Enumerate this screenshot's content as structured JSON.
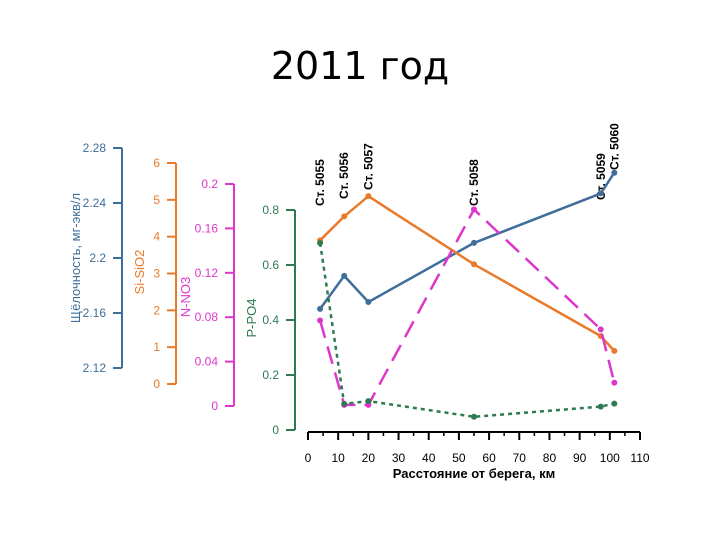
{
  "slide": {
    "title": "2011 год"
  },
  "chart_data": {
    "type": "line",
    "title": "2011 год",
    "x": {
      "label": "Расстояние от берега, км",
      "ticks": [
        "0",
        "10",
        "20",
        "30",
        "40",
        "50",
        "60",
        "70",
        "80",
        "90",
        "100",
        "110"
      ],
      "range": [
        0,
        110
      ]
    },
    "station_labels": [
      {
        "label": "Ст. 5055",
        "x": 4
      },
      {
        "label": "Ст. 5056",
        "x": 12
      },
      {
        "label": "Ст. 5057",
        "x": 20
      },
      {
        "label": "Ст. 5058",
        "x": 55
      },
      {
        "label": "Ст. 5059",
        "x": 97
      },
      {
        "label": "Ст. 5060",
        "x": 101.5
      }
    ],
    "axes": [
      {
        "id": "alk",
        "label": "Щёлочность, мг-экв/л",
        "color": "#3f6e9a",
        "range": [
          2.12,
          2.28
        ],
        "ticks": [
          "2.12",
          "2.16",
          "2.2",
          "2.24",
          "2.28"
        ]
      },
      {
        "id": "si",
        "label": "Si-SiO2",
        "color": "#ea7a2a",
        "range": [
          0,
          6
        ],
        "ticks": [
          "0",
          "1",
          "2",
          "3",
          "4",
          "5",
          "6"
        ]
      },
      {
        "id": "n",
        "label": "N-NO3",
        "color": "#dd36cc",
        "range": [
          0,
          0.2
        ],
        "ticks": [
          "0",
          "0.04",
          "0.08",
          "0.12",
          "0.16",
          "0.2"
        ]
      },
      {
        "id": "p",
        "label": "P-PO4",
        "color": "#2f7a51",
        "range": [
          0,
          0.8
        ],
        "ticks": [
          "0",
          "0.2",
          "0.4",
          "0.6",
          "0.8"
        ]
      }
    ],
    "series": [
      {
        "axis": "alk",
        "color": "#3f6e9a",
        "style": "solid",
        "points": [
          [
            4,
            2.163
          ],
          [
            12,
            2.187
          ],
          [
            20,
            2.168
          ],
          [
            55,
            2.211
          ],
          [
            97,
            2.247
          ],
          [
            101.5,
            2.262
          ]
        ]
      },
      {
        "axis": "si",
        "color": "#ea7a2a",
        "style": "solid",
        "points": [
          [
            4,
            3.9
          ],
          [
            12,
            4.55
          ],
          [
            20,
            5.1
          ],
          [
            55,
            3.25
          ],
          [
            97,
            1.3
          ],
          [
            101.5,
            0.9
          ]
        ]
      },
      {
        "axis": "n",
        "color": "#dd36cc",
        "style": "dashed",
        "points": [
          [
            4,
            0.077
          ],
          [
            12,
            0.001
          ],
          [
            20,
            0.001
          ],
          [
            55,
            0.177
          ],
          [
            97,
            0.069
          ],
          [
            101.5,
            0.021
          ]
        ]
      },
      {
        "axis": "p",
        "color": "#2f7a51",
        "style": "dotted",
        "points": [
          [
            4,
            0.68
          ],
          [
            12,
            0.095
          ],
          [
            20,
            0.105
          ],
          [
            55,
            0.048
          ],
          [
            97,
            0.085
          ],
          [
            101.5,
            0.096
          ]
        ]
      }
    ]
  }
}
